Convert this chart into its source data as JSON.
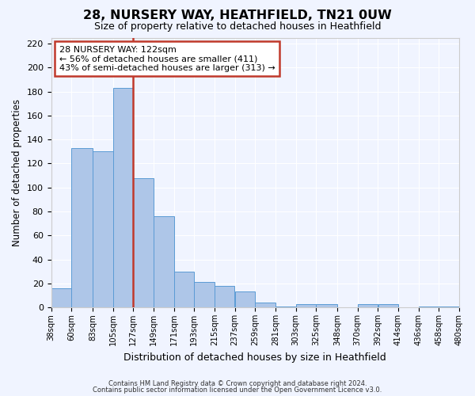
{
  "title": "28, NURSERY WAY, HEATHFIELD, TN21 0UW",
  "subtitle": "Size of property relative to detached houses in Heathfield",
  "xlabel": "Distribution of detached houses by size in Heathfield",
  "ylabel": "Number of detached properties",
  "bar_color": "#aec6e8",
  "bar_edge_color": "#5b9bd5",
  "bg_color": "#f0f4ff",
  "grid_color": "#ffffff",
  "vline_color": "#c0392b",
  "vline_pos": 127,
  "bin_edges": [
    38,
    60,
    83,
    105,
    127,
    149,
    171,
    193,
    215,
    237,
    259,
    281,
    303,
    325,
    348,
    370,
    392,
    414,
    436,
    458,
    480
  ],
  "bin_labels": [
    "38sqm",
    "60sqm",
    "83sqm",
    "105sqm",
    "127sqm",
    "149sqm",
    "171sqm",
    "193sqm",
    "215sqm",
    "237sqm",
    "259sqm",
    "281sqm",
    "303sqm",
    "325sqm",
    "348sqm",
    "370sqm",
    "392sqm",
    "414sqm",
    "436sqm",
    "458sqm",
    "480sqm"
  ],
  "counts": [
    16,
    133,
    130,
    183,
    108,
    76,
    30,
    21,
    18,
    13,
    4,
    1,
    3,
    3,
    0,
    3,
    3,
    0,
    1,
    1
  ],
  "ylim": [
    0,
    225
  ],
  "yticks": [
    0,
    20,
    40,
    60,
    80,
    100,
    120,
    140,
    160,
    180,
    200,
    220
  ],
  "annotation_title": "28 NURSERY WAY: 122sqm",
  "annotation_line1": "← 56% of detached houses are smaller (411)",
  "annotation_line2": "43% of semi-detached houses are larger (313) →",
  "annotation_box_color": "#ffffff",
  "annotation_box_edge": "#c0392b",
  "footer1": "Contains HM Land Registry data © Crown copyright and database right 2024.",
  "footer2": "Contains public sector information licensed under the Open Government Licence v3.0."
}
